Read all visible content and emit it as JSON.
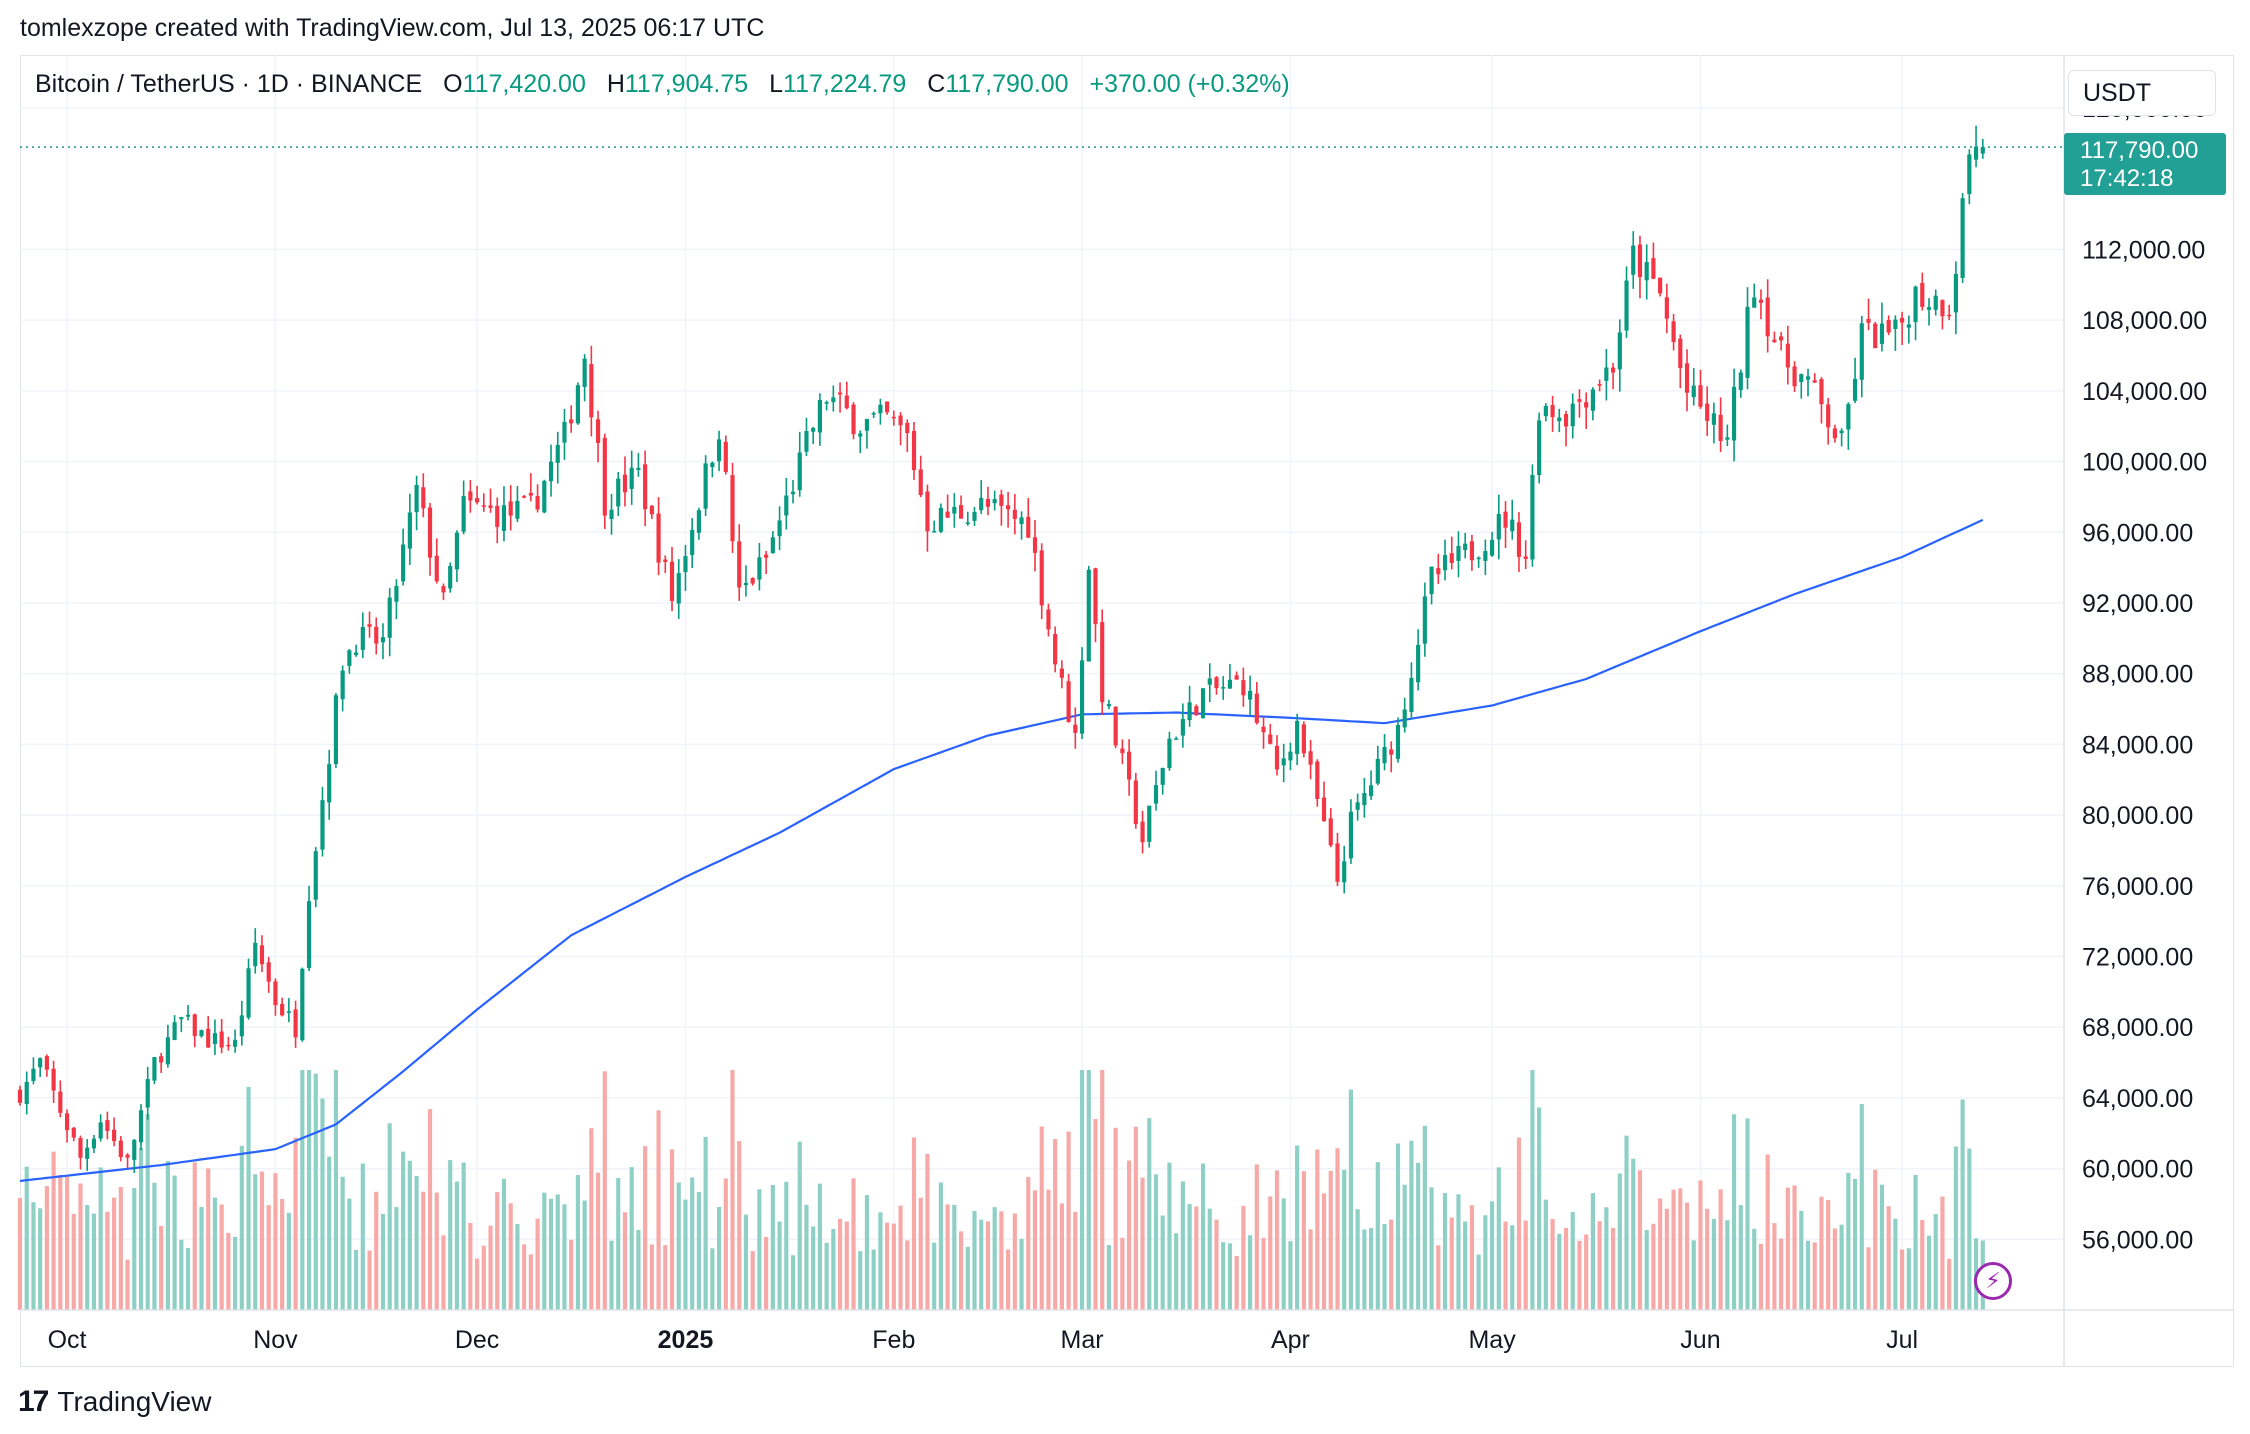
{
  "header": {
    "attribution": "tomlexzope created with TradingView.com, Jul 13, 2025 06:17 UTC"
  },
  "legend": {
    "symbol": "Bitcoin / TetherUS · 1D · BINANCE",
    "o_label": "O",
    "o_value": "117,420.00",
    "h_label": "H",
    "h_value": "117,904.75",
    "l_label": "L",
    "l_value": "117,224.79",
    "c_label": "C",
    "c_value": "117,790.00",
    "change": "+370.00 (+0.32%)"
  },
  "currency_button": "USDT",
  "last_price": {
    "price": "117,790.00",
    "countdown": "17:42:18"
  },
  "footer": {
    "brand": "TradingView"
  },
  "colors": {
    "up": "#089981",
    "down": "#f23645",
    "up_volume": "#8fd0c6",
    "down_volume": "#f7a9a7",
    "ma": "#2962ff",
    "grid": "#f0f3fa",
    "last_line": "#22a095",
    "alert_icon": "#9c27b0"
  },
  "icons": {
    "alert": "lightning-bolt-icon",
    "logo": "tradingview-logo-icon"
  },
  "chart_data": {
    "type": "candlestick",
    "title": "Bitcoin / TetherUS · 1D · BINANCE",
    "ylim": [
      52000,
      123000
    ],
    "y_ticks": [
      {
        "value": 120000,
        "label": "120,000.00"
      },
      {
        "value": 112000,
        "label": "112,000.00"
      },
      {
        "value": 108000,
        "label": "108,000.00"
      },
      {
        "value": 104000,
        "label": "104,000.00"
      },
      {
        "value": 100000,
        "label": "100,000.00"
      },
      {
        "value": 96000,
        "label": "96,000.00"
      },
      {
        "value": 92000,
        "label": "92,000.00"
      },
      {
        "value": 88000,
        "label": "88,000.00"
      },
      {
        "value": 84000,
        "label": "84,000.00"
      },
      {
        "value": 80000,
        "label": "80,000.00"
      },
      {
        "value": 76000,
        "label": "76,000.00"
      },
      {
        "value": 72000,
        "label": "72,000.00"
      },
      {
        "value": 68000,
        "label": "68,000.00"
      },
      {
        "value": 64000,
        "label": "64,000.00"
      },
      {
        "value": 60000,
        "label": "60,000.00"
      },
      {
        "value": 56000,
        "label": "56,000.00"
      }
    ],
    "x_ticks": [
      {
        "date": "2024-10-01",
        "label": "Oct",
        "bold": false
      },
      {
        "date": "2024-11-01",
        "label": "Nov",
        "bold": false
      },
      {
        "date": "2024-12-01",
        "label": "Dec",
        "bold": false
      },
      {
        "date": "2025-01-01",
        "label": "2025",
        "bold": true
      },
      {
        "date": "2025-02-01",
        "label": "Feb",
        "bold": false
      },
      {
        "date": "2025-03-01",
        "label": "Mar",
        "bold": false
      },
      {
        "date": "2025-04-01",
        "label": "Apr",
        "bold": false
      },
      {
        "date": "2025-05-01",
        "label": "May",
        "bold": false
      },
      {
        "date": "2025-06-01",
        "label": "Jun",
        "bold": false
      },
      {
        "date": "2025-07-01",
        "label": "Jul",
        "bold": false
      }
    ],
    "x_range": [
      "2024-09-24",
      "2025-07-23"
    ],
    "first_candle_date": "2024-09-24",
    "last_price": 117790,
    "close_path": [
      [
        "2024-09-24",
        64300
      ],
      [
        "2024-09-27",
        66000
      ],
      [
        "2024-09-30",
        63300
      ],
      [
        "2024-10-03",
        60600
      ],
      [
        "2024-10-06",
        62800
      ],
      [
        "2024-10-10",
        60300
      ],
      [
        "2024-10-14",
        66000
      ],
      [
        "2024-10-18",
        68400
      ],
      [
        "2024-10-22",
        67300
      ],
      [
        "2024-10-26",
        67000
      ],
      [
        "2024-10-29",
        72700
      ],
      [
        "2024-11-01",
        69500
      ],
      [
        "2024-11-04",
        68000
      ],
      [
        "2024-11-06",
        75800
      ],
      [
        "2024-11-11",
        88700
      ],
      [
        "2024-11-13",
        90000
      ],
      [
        "2024-11-17",
        89800
      ],
      [
        "2024-11-22",
        98300
      ],
      [
        "2024-11-26",
        91900
      ],
      [
        "2024-11-29",
        97500
      ],
      [
        "2024-12-05",
        97000
      ],
      [
        "2024-12-09",
        97300
      ],
      [
        "2024-12-14",
        101400
      ],
      [
        "2024-12-17",
        106100
      ],
      [
        "2024-12-20",
        97800
      ],
      [
        "2024-12-25",
        99300
      ],
      [
        "2024-12-30",
        92300
      ],
      [
        "2025-01-06",
        102000
      ],
      [
        "2025-01-09",
        92400
      ],
      [
        "2025-01-13",
        94500
      ],
      [
        "2025-01-20",
        102000
      ],
      [
        "2025-01-22",
        103700
      ],
      [
        "2025-01-27",
        102100
      ],
      [
        "2025-01-31",
        102400
      ],
      [
        "2025-02-03",
        101400
      ],
      [
        "2025-02-06",
        96600
      ],
      [
        "2025-02-14",
        97500
      ],
      [
        "2025-02-21",
        96500
      ],
      [
        "2025-02-25",
        88700
      ],
      [
        "2025-02-28",
        84400
      ],
      [
        "2025-03-02",
        94200
      ],
      [
        "2025-03-04",
        87000
      ],
      [
        "2025-03-10",
        78600
      ],
      [
        "2025-03-14",
        84300
      ],
      [
        "2025-03-19",
        86900
      ],
      [
        "2025-03-25",
        87500
      ],
      [
        "2025-03-30",
        82400
      ],
      [
        "2025-04-02",
        85200
      ],
      [
        "2025-04-08",
        76300
      ],
      [
        "2025-04-10",
        79600
      ],
      [
        "2025-04-17",
        84900
      ],
      [
        "2025-04-22",
        93400
      ],
      [
        "2025-04-28",
        95000
      ],
      [
        "2025-05-03",
        96800
      ],
      [
        "2025-05-06",
        94700
      ],
      [
        "2025-05-08",
        103200
      ],
      [
        "2025-05-12",
        102700
      ],
      [
        "2025-05-19",
        105500
      ],
      [
        "2025-05-22",
        111600
      ],
      [
        "2025-05-26",
        109400
      ],
      [
        "2025-05-30",
        103900
      ],
      [
        "2025-06-05",
        101100
      ],
      [
        "2025-06-09",
        110200
      ],
      [
        "2025-06-13",
        105900
      ],
      [
        "2025-06-17",
        104400
      ],
      [
        "2025-06-22",
        100900
      ],
      [
        "2025-06-25",
        107200
      ],
      [
        "2025-06-30",
        107100
      ],
      [
        "2025-07-03",
        109500
      ],
      [
        "2025-07-08",
        108900
      ],
      [
        "2025-07-09",
        111300
      ],
      [
        "2025-07-11",
        117600
      ],
      [
        "2025-07-13",
        117790
      ]
    ],
    "indicator_line_path": [
      [
        "2024-09-24",
        59300
      ],
      [
        "2024-10-15",
        60200
      ],
      [
        "2024-11-01",
        61100
      ],
      [
        "2024-11-10",
        62500
      ],
      [
        "2024-11-20",
        65500
      ],
      [
        "2024-12-01",
        69000
      ],
      [
        "2024-12-15",
        73200
      ],
      [
        "2025-01-01",
        76500
      ],
      [
        "2025-01-15",
        79000
      ],
      [
        "2025-02-01",
        82600
      ],
      [
        "2025-02-15",
        84500
      ],
      [
        "2025-03-01",
        85700
      ],
      [
        "2025-03-15",
        85800
      ],
      [
        "2025-04-01",
        85500
      ],
      [
        "2025-04-15",
        85200
      ],
      [
        "2025-05-01",
        86200
      ],
      [
        "2025-05-15",
        87700
      ],
      [
        "2025-06-01",
        90400
      ],
      [
        "2025-06-15",
        92500
      ],
      [
        "2025-07-01",
        94600
      ],
      [
        "2025-07-13",
        96700
      ]
    ]
  }
}
